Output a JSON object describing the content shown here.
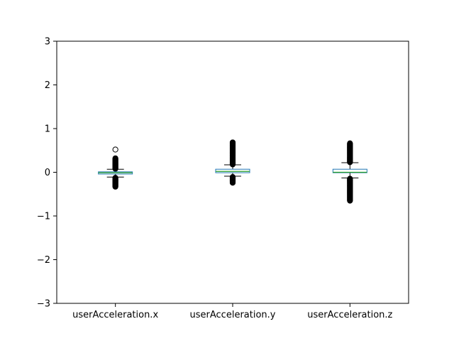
{
  "chart_data": {
    "type": "boxplot",
    "title": "",
    "xlabel": "",
    "ylabel": "",
    "ylim": [
      -3,
      3
    ],
    "yticks": [
      -3,
      -2,
      -1,
      0,
      1,
      2,
      3
    ],
    "ytick_labels": [
      "−3",
      "−2",
      "−1",
      "0",
      "1",
      "2",
      "3"
    ],
    "grid": false,
    "categories": [
      "userAcceleration.x",
      "userAcceleration.y",
      "userAcceleration.z"
    ],
    "boxes": [
      {
        "name": "userAcceleration.x",
        "whisker_low": -0.11,
        "q1": -0.04,
        "median": -0.01,
        "q3": 0.01,
        "whisker_high": 0.07,
        "fliers_low_range": [
          -0.33,
          -0.12
        ],
        "fliers_high_range": [
          0.08,
          0.33
        ],
        "fliers_extra": [
          0.52
        ]
      },
      {
        "name": "userAcceleration.y",
        "whisker_low": -0.09,
        "q1": -0.01,
        "median": 0.02,
        "q3": 0.07,
        "whisker_high": 0.17,
        "fliers_low_range": [
          -0.24,
          -0.1
        ],
        "fliers_high_range": [
          0.18,
          0.69
        ],
        "fliers_extra": []
      },
      {
        "name": "userAcceleration.z",
        "whisker_low": -0.13,
        "q1": -0.01,
        "median": 0.0,
        "q3": 0.07,
        "whisker_high": 0.22,
        "fliers_low_range": [
          -0.65,
          -0.14
        ],
        "fliers_high_range": [
          0.23,
          0.67
        ],
        "fliers_extra": []
      }
    ],
    "colors": {
      "box": "#1f77b4",
      "median": "#2ca02c",
      "whisker": "#000000",
      "flier": "#000000"
    }
  }
}
